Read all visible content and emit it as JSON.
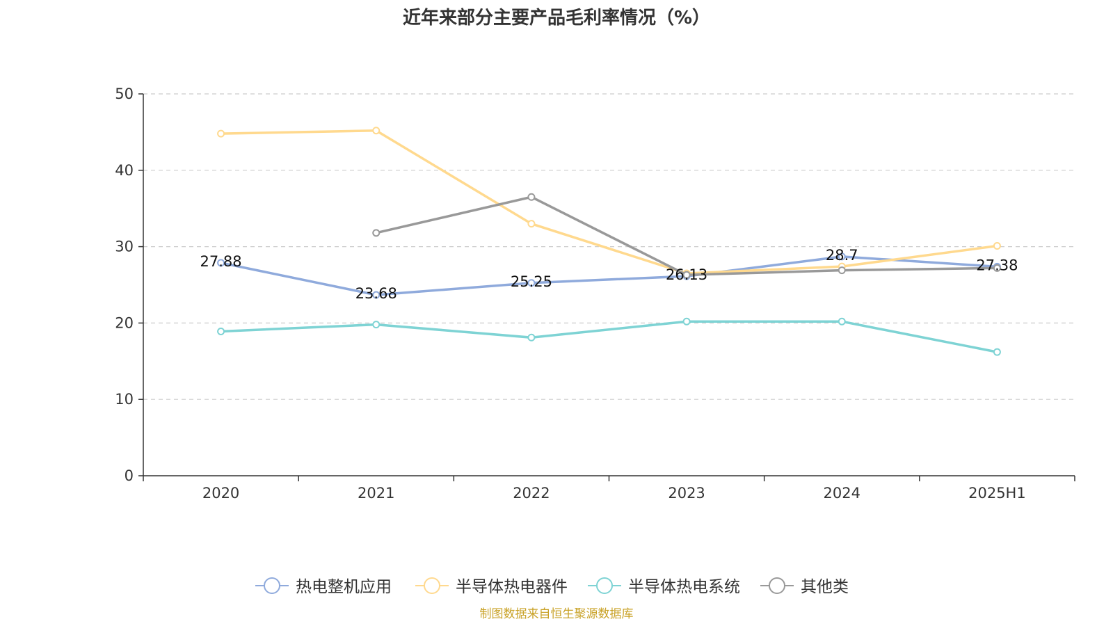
{
  "chart_data": {
    "type": "line",
    "title": "近年来部分主要产品毛利率情况（%）",
    "categories": [
      "2020",
      "2021",
      "2022",
      "2023",
      "2024",
      "2025H1"
    ],
    "ylim": [
      0,
      50
    ],
    "yticks": [
      "0",
      "10",
      "20",
      "30",
      "40",
      "50"
    ],
    "grid": true,
    "legend_position": "bottom",
    "series": [
      {
        "name": "热电整机应用",
        "color": "#8FAADC",
        "values": [
          27.88,
          23.68,
          25.25,
          26.13,
          28.7,
          27.38
        ],
        "labels": [
          "27.88",
          "23.68",
          "25.25",
          "26.13",
          "28.7",
          "27.38"
        ]
      },
      {
        "name": "半导体热电器件",
        "color": "#FFD98E",
        "values": [
          44.8,
          45.2,
          33.0,
          26.5,
          27.4,
          30.1
        ],
        "labels": [
          "",
          "",
          "",
          "",
          "",
          ""
        ]
      },
      {
        "name": "半导体热电系统",
        "color": "#7ED3D4",
        "values": [
          18.9,
          19.8,
          18.1,
          20.2,
          20.2,
          16.2
        ],
        "labels": [
          "",
          "",
          "",
          "",
          "",
          ""
        ]
      },
      {
        "name": "其他类",
        "color": "#999999",
        "values": [
          null,
          31.8,
          36.5,
          26.3,
          26.9,
          27.2
        ],
        "labels": [
          "",
          "",
          "",
          "",
          "",
          ""
        ]
      }
    ]
  },
  "source": {
    "text": "制图数据来自恒生聚源数据库",
    "color": "#C9A227"
  }
}
